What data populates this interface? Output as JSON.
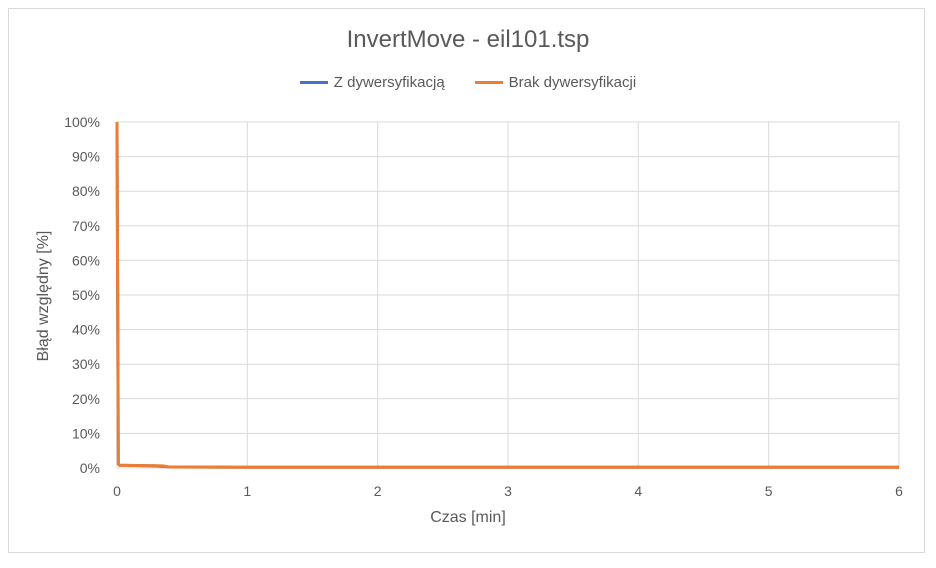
{
  "chart_data": {
    "type": "line",
    "title": "InvertMove - eil101.tsp",
    "xlabel": "Czas [min]",
    "ylabel": "Błąd względny [%]",
    "xlim": [
      0,
      6
    ],
    "ylim": [
      0,
      100
    ],
    "x_ticks": [
      0,
      1,
      2,
      3,
      4,
      5,
      6
    ],
    "y_ticks": [
      "0%",
      "10%",
      "20%",
      "30%",
      "40%",
      "50%",
      "60%",
      "70%",
      "80%",
      "90%",
      "100%"
    ],
    "y_tick_values": [
      0,
      10,
      20,
      30,
      40,
      50,
      60,
      70,
      80,
      90,
      100
    ],
    "grid": true,
    "legend_position": "top",
    "series": [
      {
        "name": "Z dywersyfikacją",
        "color": "#4472c4",
        "x": [
          0,
          0.01,
          0.02,
          0.3,
          0.4,
          1,
          2,
          3,
          4,
          5,
          6
        ],
        "y": [
          100,
          1.2,
          0.8,
          0.6,
          0.3,
          0.2,
          0.2,
          0.2,
          0.2,
          0.2,
          0.2
        ]
      },
      {
        "name": "Brak dywersyfikacji",
        "color": "#ed7d31",
        "x": [
          0,
          0.01,
          0.02,
          0.35,
          0.4,
          1,
          2,
          3,
          4,
          5,
          6
        ],
        "y": [
          100,
          1.2,
          0.8,
          0.6,
          0.3,
          0.2,
          0.2,
          0.2,
          0.2,
          0.2,
          0.2
        ]
      }
    ]
  }
}
